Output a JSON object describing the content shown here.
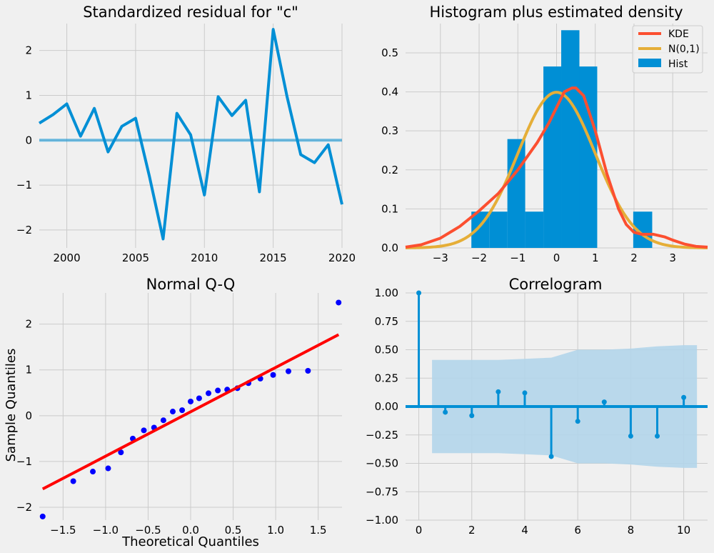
{
  "colors": {
    "background": "#f0f0f0",
    "grid": "#cbcbcb",
    "blue": "#008fd5",
    "red": "#fc4f30",
    "yellow": "#e5ae38",
    "qq_points": "#0000ff",
    "qq_line": "#ff0000",
    "band": "#b3d5ea"
  },
  "chart_data": [
    {
      "id": "residual",
      "type": "line",
      "title": "Standardized residual for \"c\"",
      "xlabel": "",
      "ylabel": "",
      "xlim": [
        1998,
        2020
      ],
      "ylim": [
        -2.4,
        2.6
      ],
      "xticks": [
        2000,
        2005,
        2010,
        2015,
        2020
      ],
      "yticks": [
        -2,
        -1,
        0,
        1,
        2
      ],
      "x": [
        1998,
        1999,
        2000,
        2001,
        2002,
        2003,
        2004,
        2005,
        2006,
        2007,
        2008,
        2009,
        2010,
        2011,
        2012,
        2013,
        2014,
        2015,
        2016,
        2017,
        2018,
        2019,
        2020
      ],
      "values": [
        0.38,
        0.57,
        0.81,
        0.09,
        0.71,
        -0.26,
        0.31,
        0.49,
        -0.8,
        -2.2,
        0.6,
        0.12,
        -1.22,
        0.97,
        0.55,
        0.89,
        -1.15,
        2.47,
        0.98,
        -0.32,
        -0.5,
        -0.1,
        -1.43
      ],
      "hline": 0
    },
    {
      "id": "histogram",
      "type": "bar",
      "title": "Histogram plus estimated density",
      "xlim": [
        -3.9,
        3.9
      ],
      "ylim": [
        0,
        0.575
      ],
      "xticks": [
        -3,
        -2,
        -1,
        0,
        1,
        2,
        3
      ],
      "yticks": [
        0.0,
        0.1,
        0.2,
        0.3,
        0.4,
        0.5
      ],
      "bins": [
        {
          "x0": -2.2,
          "x1": -1.73,
          "height": 0.093
        },
        {
          "x0": -1.73,
          "x1": -1.27,
          "height": 0.093
        },
        {
          "x0": -1.27,
          "x1": -0.81,
          "height": 0.279
        },
        {
          "x0": -0.81,
          "x1": -0.34,
          "height": 0.093
        },
        {
          "x0": -0.34,
          "x1": 0.12,
          "height": 0.465
        },
        {
          "x0": 0.12,
          "x1": 0.59,
          "height": 0.558
        },
        {
          "x0": 0.59,
          "x1": 1.05,
          "height": 0.465
        },
        {
          "x0": 1.05,
          "x1": 1.52,
          "height": 0
        },
        {
          "x0": 1.52,
          "x1": 1.98,
          "height": 0
        },
        {
          "x0": 1.98,
          "x1": 2.47,
          "height": 0.093
        }
      ],
      "kde": {
        "x": [
          -3.9,
          -3.5,
          -3.0,
          -2.5,
          -2.0,
          -1.5,
          -1.0,
          -0.5,
          -0.2,
          0.0,
          0.2,
          0.4,
          0.5,
          0.7,
          1.0,
          1.3,
          1.6,
          1.8,
          2.0,
          2.2,
          2.5,
          2.8,
          3.0,
          3.3,
          3.6,
          3.9
        ],
        "values": [
          0.002,
          0.008,
          0.025,
          0.055,
          0.095,
          0.14,
          0.2,
          0.27,
          0.32,
          0.36,
          0.4,
          0.41,
          0.41,
          0.39,
          0.3,
          0.19,
          0.1,
          0.06,
          0.04,
          0.035,
          0.035,
          0.028,
          0.02,
          0.01,
          0.004,
          0.002
        ]
      },
      "legend": [
        "KDE",
        "N(0,1)",
        "Hist"
      ]
    },
    {
      "id": "qq",
      "type": "scatter",
      "title": "Normal Q-Q",
      "xlabel": "Theoretical Quantiles",
      "ylabel": "Sample Quantiles",
      "xlim": [
        -1.78,
        1.78
      ],
      "ylim": [
        -2.28,
        2.68
      ],
      "xticks": [
        -1.5,
        -1.0,
        -0.5,
        0.0,
        0.5,
        1.0,
        1.5
      ],
      "yticks": [
        -2,
        -1,
        0,
        1,
        2
      ],
      "x": [
        -1.74,
        -1.38,
        -1.15,
        -0.97,
        -0.82,
        -0.68,
        -0.55,
        -0.43,
        -0.32,
        -0.21,
        -0.1,
        0.0,
        0.1,
        0.21,
        0.32,
        0.43,
        0.55,
        0.68,
        0.82,
        0.97,
        1.15,
        1.38,
        1.74
      ],
      "values": [
        -2.2,
        -1.43,
        -1.22,
        -1.15,
        -0.8,
        -0.5,
        -0.32,
        -0.26,
        -0.1,
        0.09,
        0.12,
        0.31,
        0.38,
        0.49,
        0.55,
        0.57,
        0.6,
        0.71,
        0.81,
        0.89,
        0.97,
        0.98,
        2.47
      ],
      "line": {
        "x": [
          -1.74,
          1.74
        ],
        "values": [
          -1.6,
          1.77
        ]
      }
    },
    {
      "id": "correlogram",
      "type": "bar",
      "title": "Correlogram",
      "xlim": [
        -0.5,
        10.9
      ],
      "ylim": [
        -1.0,
        1.0
      ],
      "xticks": [
        0,
        2,
        4,
        6,
        8,
        10
      ],
      "yticks": [
        -1.0,
        -0.75,
        -0.5,
        -0.25,
        0.0,
        0.25,
        0.5,
        0.75,
        1.0
      ],
      "lags": [
        0,
        1,
        2,
        3,
        4,
        5,
        6,
        7,
        8,
        9,
        10
      ],
      "values": [
        1.0,
        -0.05,
        -0.08,
        0.13,
        0.12,
        -0.44,
        -0.13,
        0.04,
        -0.26,
        -0.26,
        0.08
      ],
      "band": {
        "x": [
          0.5,
          1,
          2,
          3,
          4,
          5,
          6,
          7,
          8,
          9,
          10,
          10.5
        ],
        "upper": [
          0.41,
          0.41,
          0.41,
          0.41,
          0.42,
          0.43,
          0.5,
          0.5,
          0.51,
          0.53,
          0.54,
          0.54
        ]
      }
    }
  ]
}
